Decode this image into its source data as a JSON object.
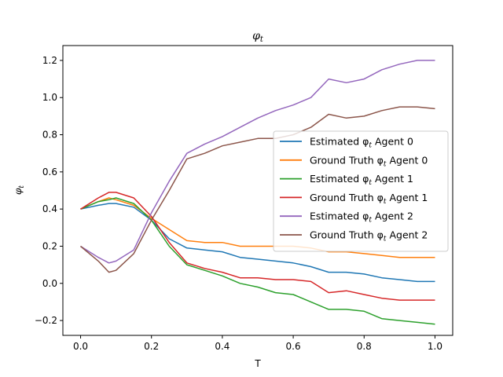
{
  "chart_data": {
    "type": "line",
    "title": "φ",
    "title_sub": "t",
    "xlabel": "T",
    "ylabel": "φ",
    "ylabel_sub": "t",
    "xlim": [
      -0.05,
      1.05
    ],
    "ylim": [
      -0.28,
      1.28
    ],
    "xticks": [
      0.0,
      0.2,
      0.4,
      0.6,
      0.8,
      1.0
    ],
    "xtick_labels": [
      "0.0",
      "0.2",
      "0.4",
      "0.6",
      "0.8",
      "1.0"
    ],
    "yticks": [
      -0.2,
      0.0,
      0.2,
      0.4,
      0.6,
      0.8,
      1.0,
      1.2
    ],
    "ytick_labels": [
      "−0.2",
      "0.0",
      "0.2",
      "0.4",
      "0.6",
      "0.8",
      "1.0",
      "1.2"
    ],
    "grid": false,
    "legend_position": "center-right",
    "x": [
      0.0,
      0.05,
      0.08,
      0.1,
      0.15,
      0.2,
      0.25,
      0.3,
      0.35,
      0.4,
      0.45,
      0.5,
      0.55,
      0.6,
      0.65,
      0.7,
      0.75,
      0.8,
      0.85,
      0.9,
      0.95,
      1.0
    ],
    "series": [
      {
        "name": "Estimated φ",
        "name_sub": "t",
        "name_suffix": " Agent 0",
        "color": "#1f77b4",
        "values": [
          0.4,
          0.42,
          0.43,
          0.43,
          0.41,
          0.34,
          0.24,
          0.19,
          0.18,
          0.17,
          0.14,
          0.13,
          0.12,
          0.11,
          0.09,
          0.06,
          0.06,
          0.05,
          0.03,
          0.02,
          0.01,
          0.01
        ]
      },
      {
        "name": "Ground Truth φ",
        "name_sub": "t",
        "name_suffix": " Agent 0",
        "color": "#ff7f0e",
        "values": [
          0.4,
          0.44,
          0.46,
          0.45,
          0.42,
          0.35,
          0.29,
          0.23,
          0.22,
          0.22,
          0.2,
          0.2,
          0.2,
          0.2,
          0.19,
          0.17,
          0.17,
          0.16,
          0.15,
          0.14,
          0.14,
          0.14
        ]
      },
      {
        "name": "Estimated φ",
        "name_sub": "t",
        "name_suffix": " Agent 1",
        "color": "#2ca02c",
        "values": [
          0.4,
          0.44,
          0.45,
          0.46,
          0.43,
          0.34,
          0.2,
          0.1,
          0.07,
          0.04,
          0.0,
          -0.02,
          -0.05,
          -0.06,
          -0.1,
          -0.14,
          -0.14,
          -0.15,
          -0.19,
          -0.2,
          -0.21,
          -0.22
        ]
      },
      {
        "name": "Ground Truth φ",
        "name_sub": "t",
        "name_suffix": " Agent 1",
        "color": "#d62728",
        "values": [
          0.4,
          0.46,
          0.49,
          0.49,
          0.46,
          0.36,
          0.22,
          0.11,
          0.08,
          0.06,
          0.03,
          0.03,
          0.02,
          0.02,
          0.01,
          -0.05,
          -0.04,
          -0.06,
          -0.08,
          -0.09,
          -0.09,
          -0.09
        ]
      },
      {
        "name": "Estimated φ",
        "name_sub": "t",
        "name_suffix": " Agent 2",
        "color": "#9467bd",
        "values": [
          0.2,
          0.14,
          0.11,
          0.12,
          0.18,
          0.38,
          0.55,
          0.7,
          0.75,
          0.79,
          0.84,
          0.89,
          0.93,
          0.96,
          1.0,
          1.1,
          1.08,
          1.1,
          1.15,
          1.18,
          1.2,
          1.2
        ]
      },
      {
        "name": "Ground Truth φ",
        "name_sub": "t",
        "name_suffix": " Agent 2",
        "color": "#8c564b",
        "values": [
          0.2,
          0.12,
          0.06,
          0.07,
          0.16,
          0.34,
          0.5,
          0.67,
          0.7,
          0.74,
          0.76,
          0.78,
          0.78,
          0.8,
          0.84,
          0.91,
          0.89,
          0.9,
          0.93,
          0.95,
          0.95,
          0.94
        ]
      }
    ]
  }
}
